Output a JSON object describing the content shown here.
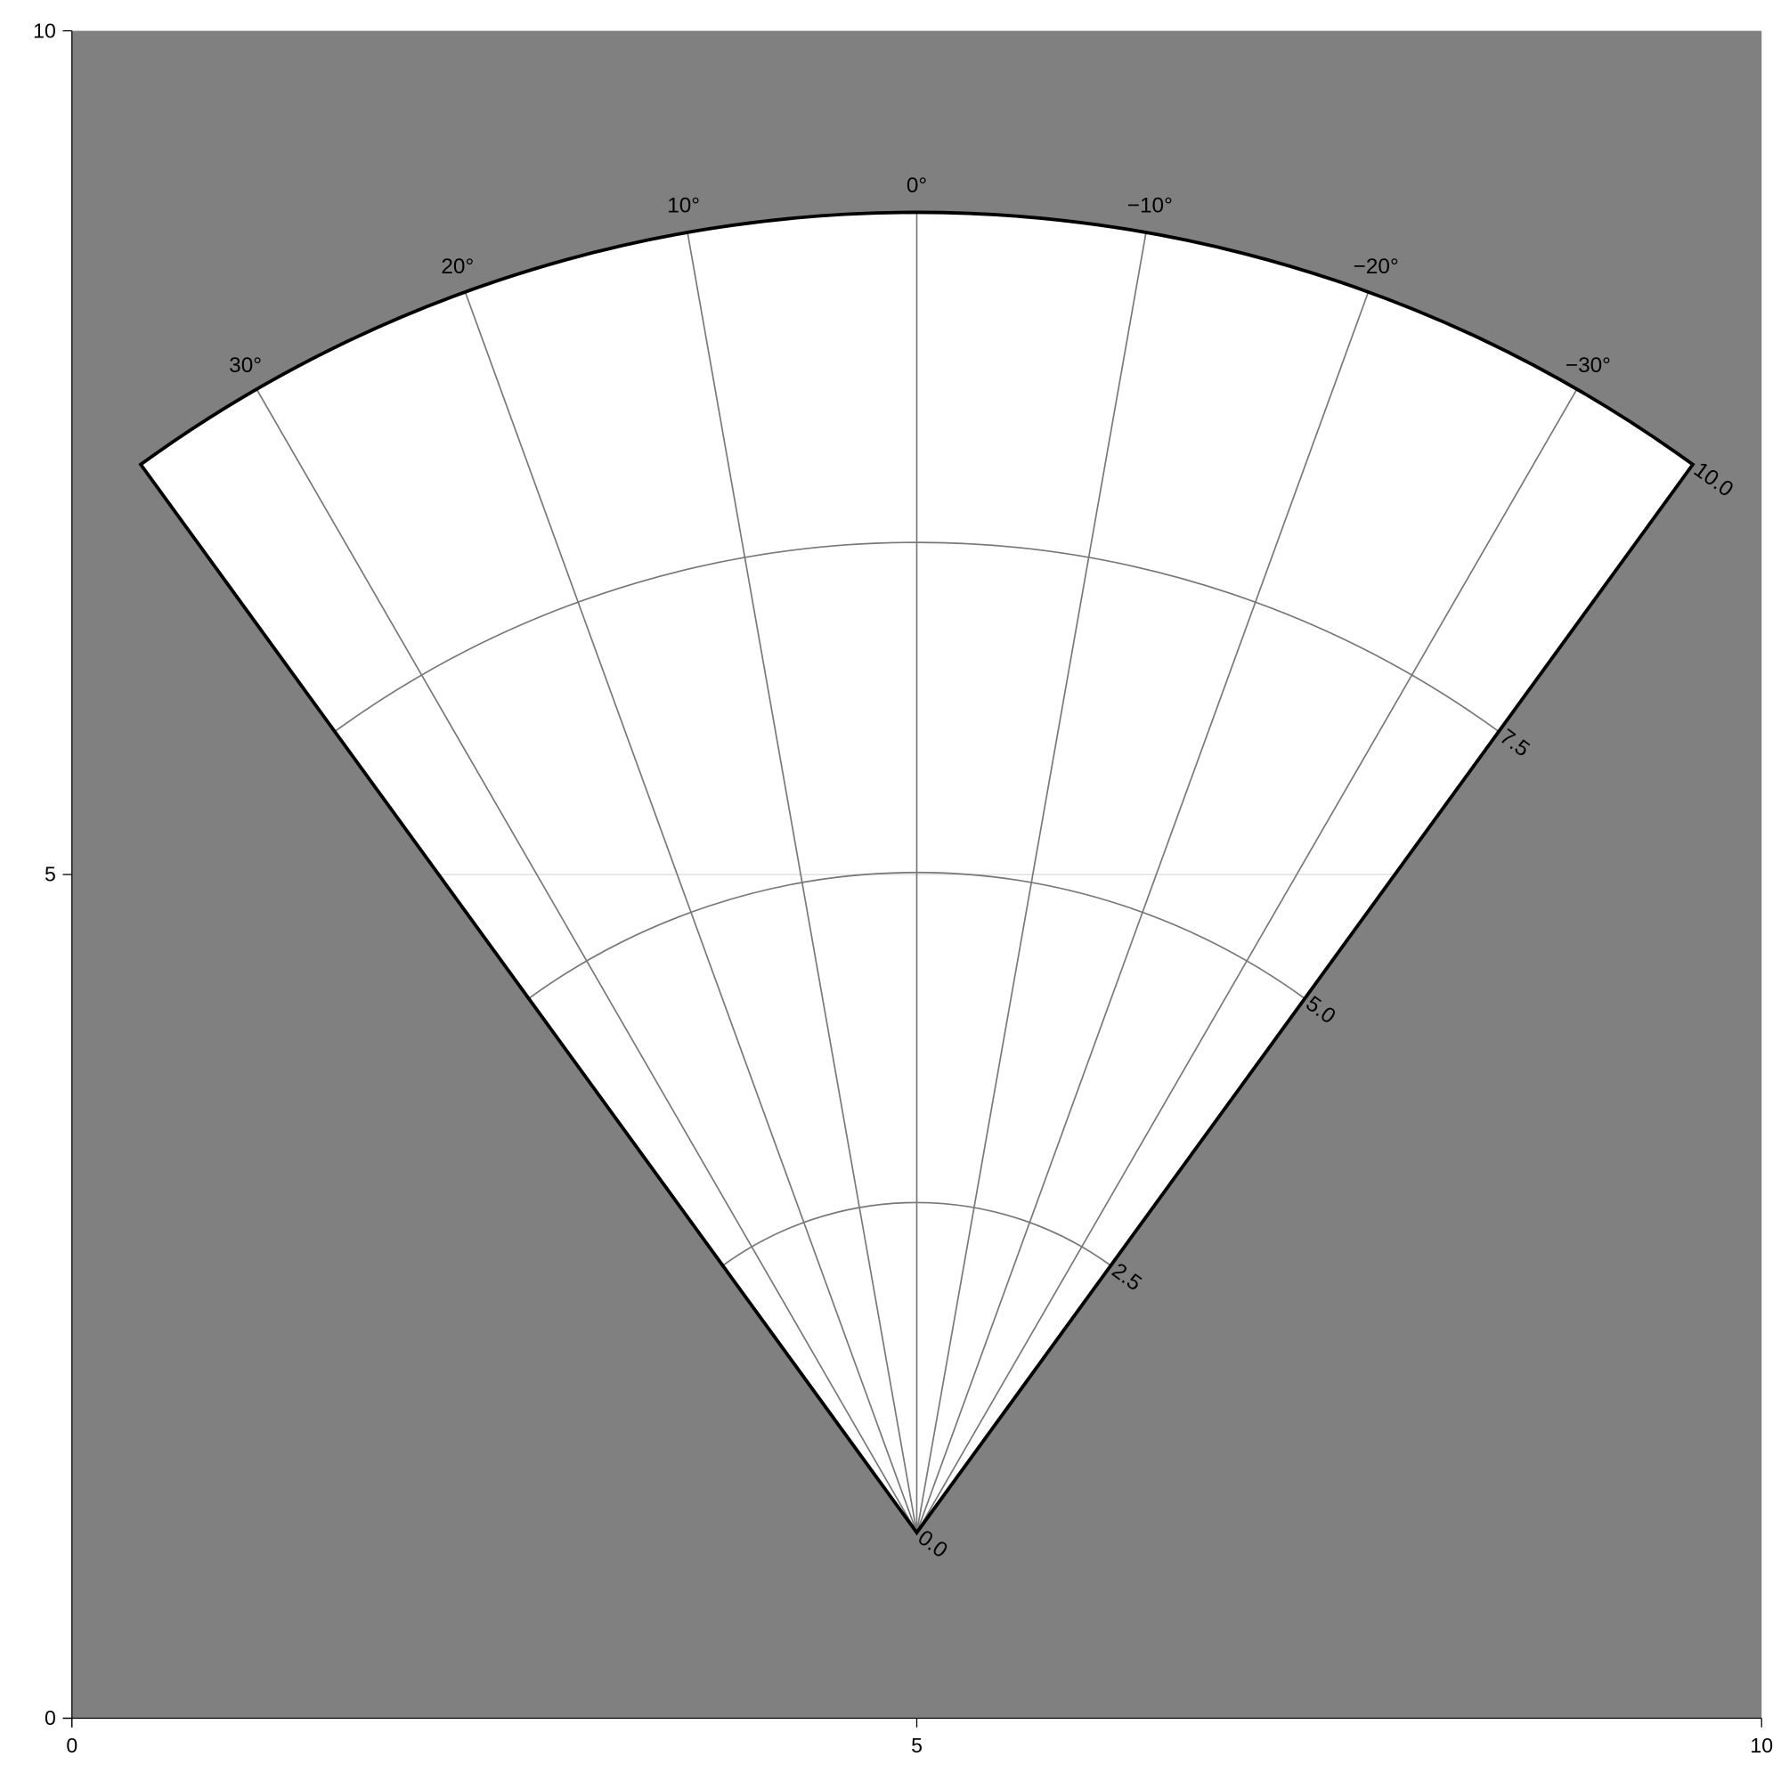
{
  "chart_data": {
    "type": "polar-sector",
    "title": "",
    "xlabel": "",
    "ylabel": "",
    "xlim": [
      0,
      10
    ],
    "ylim": [
      0,
      10
    ],
    "x_ticks": [
      "0",
      "5",
      "10"
    ],
    "y_ticks": [
      "0",
      "5",
      "10"
    ],
    "background_color": "#808080",
    "sector_fill": "#ffffff",
    "polar": {
      "theta_range_deg": [
        -36,
        36
      ],
      "r_range": [
        0,
        10
      ],
      "theta_ticks": [
        "30°",
        "20°",
        "10°",
        "0°",
        "−10°",
        "−20°",
        "−30°"
      ],
      "theta_tick_values": [
        30,
        20,
        10,
        0,
        -10,
        -20,
        -30
      ],
      "r_ticks": [
        "0.0",
        "2.5",
        "5.0",
        "7.5",
        "10.0"
      ],
      "r_tick_values": [
        0,
        2.5,
        5,
        7.5,
        10
      ],
      "center_data": [
        5,
        1.1
      ]
    },
    "hline": {
      "y": 5,
      "color": "#dddddd"
    }
  }
}
